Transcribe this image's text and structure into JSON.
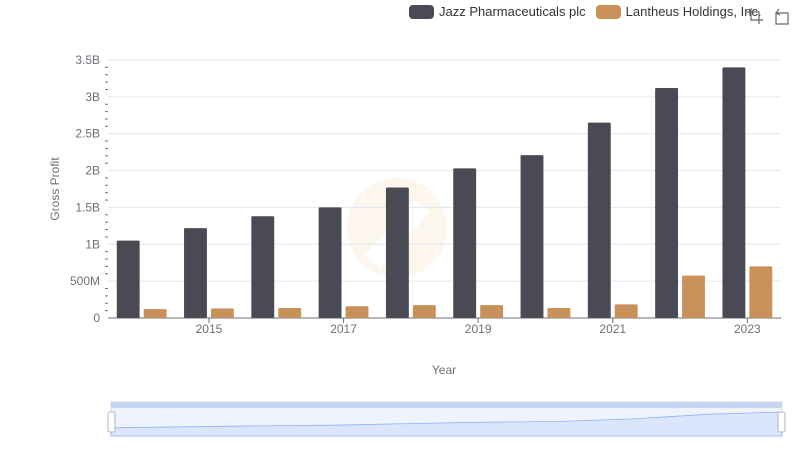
{
  "toolbox": {
    "zoom_icon": "zoom-icon",
    "restore_icon": "restore-icon"
  },
  "chart_data": {
    "type": "bar",
    "title": "",
    "xlabel": "Year",
    "ylabel": "Gross Profit",
    "categories": [
      "2014",
      "2015",
      "2016",
      "2017",
      "2018",
      "2019",
      "2020",
      "2021",
      "2022",
      "2023"
    ],
    "x_tick_labels": [
      "2015",
      "2017",
      "2019",
      "2021",
      "2023"
    ],
    "y_tick_labels": [
      "0",
      "500M",
      "1B",
      "1.5B",
      "2B",
      "2.5B",
      "3B",
      "3.5B"
    ],
    "ylim": [
      0,
      3500000000
    ],
    "grid": true,
    "legend_position": "top-right",
    "series": [
      {
        "name": "Jazz Pharmaceuticals plc",
        "color": "#4a4a55",
        "values": [
          1050000000,
          1220000000,
          1380000000,
          1500000000,
          1770000000,
          2030000000,
          2210000000,
          2650000000,
          3120000000,
          3400000000
        ]
      },
      {
        "name": "Lantheus Holdings, Inc.",
        "color": "#c8915a",
        "values": [
          120000000,
          130000000,
          135000000,
          160000000,
          175000000,
          175000000,
          135000000,
          185000000,
          575000000,
          700000000
        ]
      }
    ]
  }
}
